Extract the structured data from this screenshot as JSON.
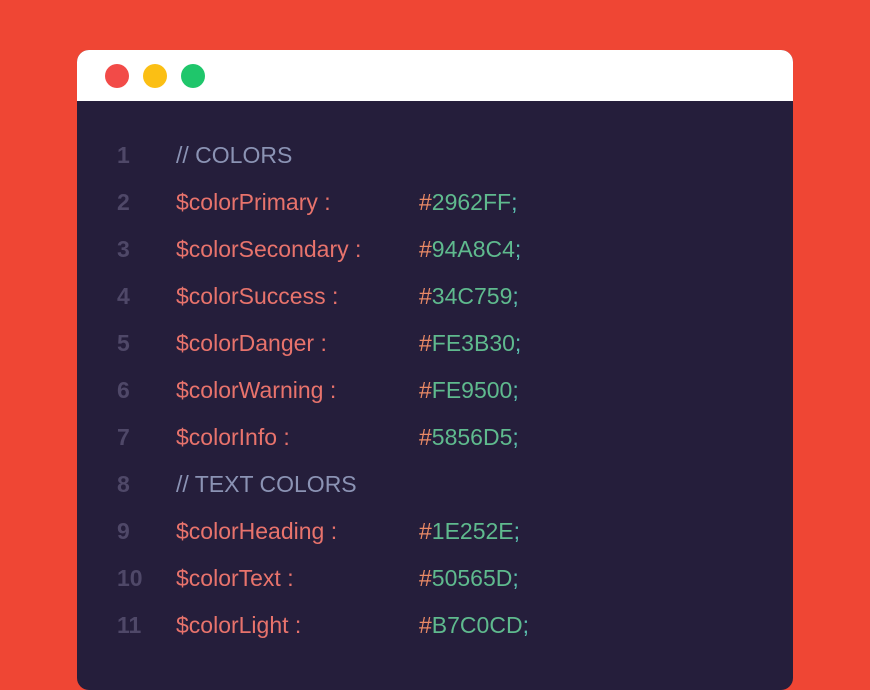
{
  "colors": {
    "background": "#ef4634",
    "editor": "#251e3b",
    "close": "#f24b48",
    "minimize": "#fbbf14",
    "maximize": "#1fc66b"
  },
  "window_controls": [
    "close",
    "minimize",
    "maximize"
  ],
  "lines": [
    {
      "n": "1",
      "comment": "// COLORS"
    },
    {
      "n": "2",
      "name": "$colorPrimary :",
      "value": "2962FF"
    },
    {
      "n": "3",
      "name": "$colorSecondary :",
      "value": "94A8C4"
    },
    {
      "n": "4",
      "name": "$colorSuccess :",
      "value": "34C759"
    },
    {
      "n": "5",
      "name": "$colorDanger :",
      "value": "FE3B30"
    },
    {
      "n": "6",
      "name": "$colorWarning :",
      "value": "FE9500"
    },
    {
      "n": "7",
      "name": "$colorInfo :",
      "value": "5856D5"
    },
    {
      "n": "8",
      "comment": "// TEXT COLORS"
    },
    {
      "n": "9",
      "name": "$colorHeading :",
      "value": "1E252E"
    },
    {
      "n": "10",
      "name": "$colorText :",
      "value": "50565D"
    },
    {
      "n": "11",
      "name": "$colorLight :",
      "value": "B7C0CD"
    }
  ]
}
